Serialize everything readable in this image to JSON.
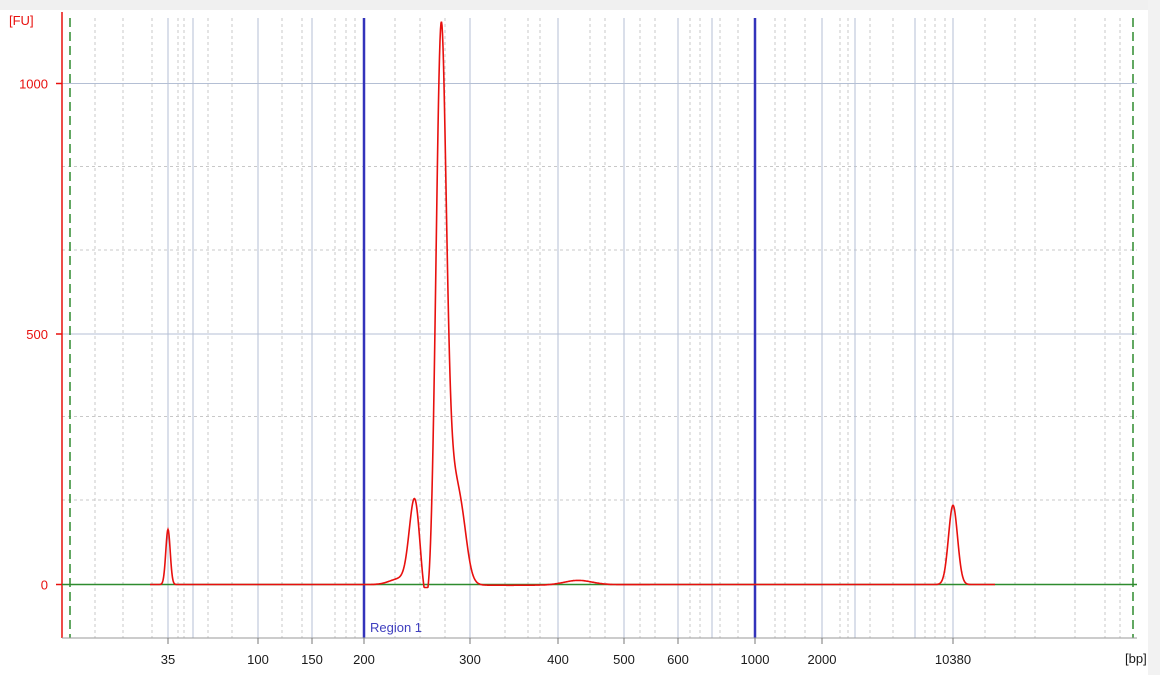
{
  "chart_data": {
    "type": "line",
    "ylabel": "[FU]",
    "xlabel": "[bp]",
    "y_ticks": [
      0,
      500,
      1000
    ],
    "y_tick_labels": [
      "0",
      "500",
      "1000"
    ],
    "ylim": [
      -100,
      1130
    ],
    "x_tick_labels": [
      "35",
      "100",
      "150",
      "200",
      "300",
      "400",
      "500",
      "600",
      "1000",
      "2000",
      "10380"
    ],
    "grid": true,
    "region": {
      "label": "Region 1",
      "start": "200",
      "end": "1000"
    },
    "series": [
      {
        "color": "#e8100e",
        "points": [
          {
            "x": "35",
            "y": 110
          },
          {
            "x": "200",
            "y": 2
          },
          {
            "x": "243",
            "y": 178
          },
          {
            "x": "253",
            "y": 85
          },
          {
            "x": "267",
            "y": 1020
          },
          {
            "x": "277",
            "y": 240
          },
          {
            "x": "300",
            "y": 3
          },
          {
            "x": "425",
            "y": 9
          },
          {
            "x": "500",
            "y": 0
          },
          {
            "x": "1000",
            "y": 0
          },
          {
            "x": "10380",
            "y": 158
          }
        ]
      }
    ],
    "colors": {
      "axis_left": "#e8100e",
      "baseline": "#2e8b2e",
      "region_line": "#3333bb",
      "grid_major": "#b4bfd4",
      "grid_minor": "#c8c8c8",
      "markers": "#2e8b2e",
      "x_text": "#1a1a1a",
      "y_text": "#e8100e",
      "region_text": "#3f3fbf"
    }
  }
}
